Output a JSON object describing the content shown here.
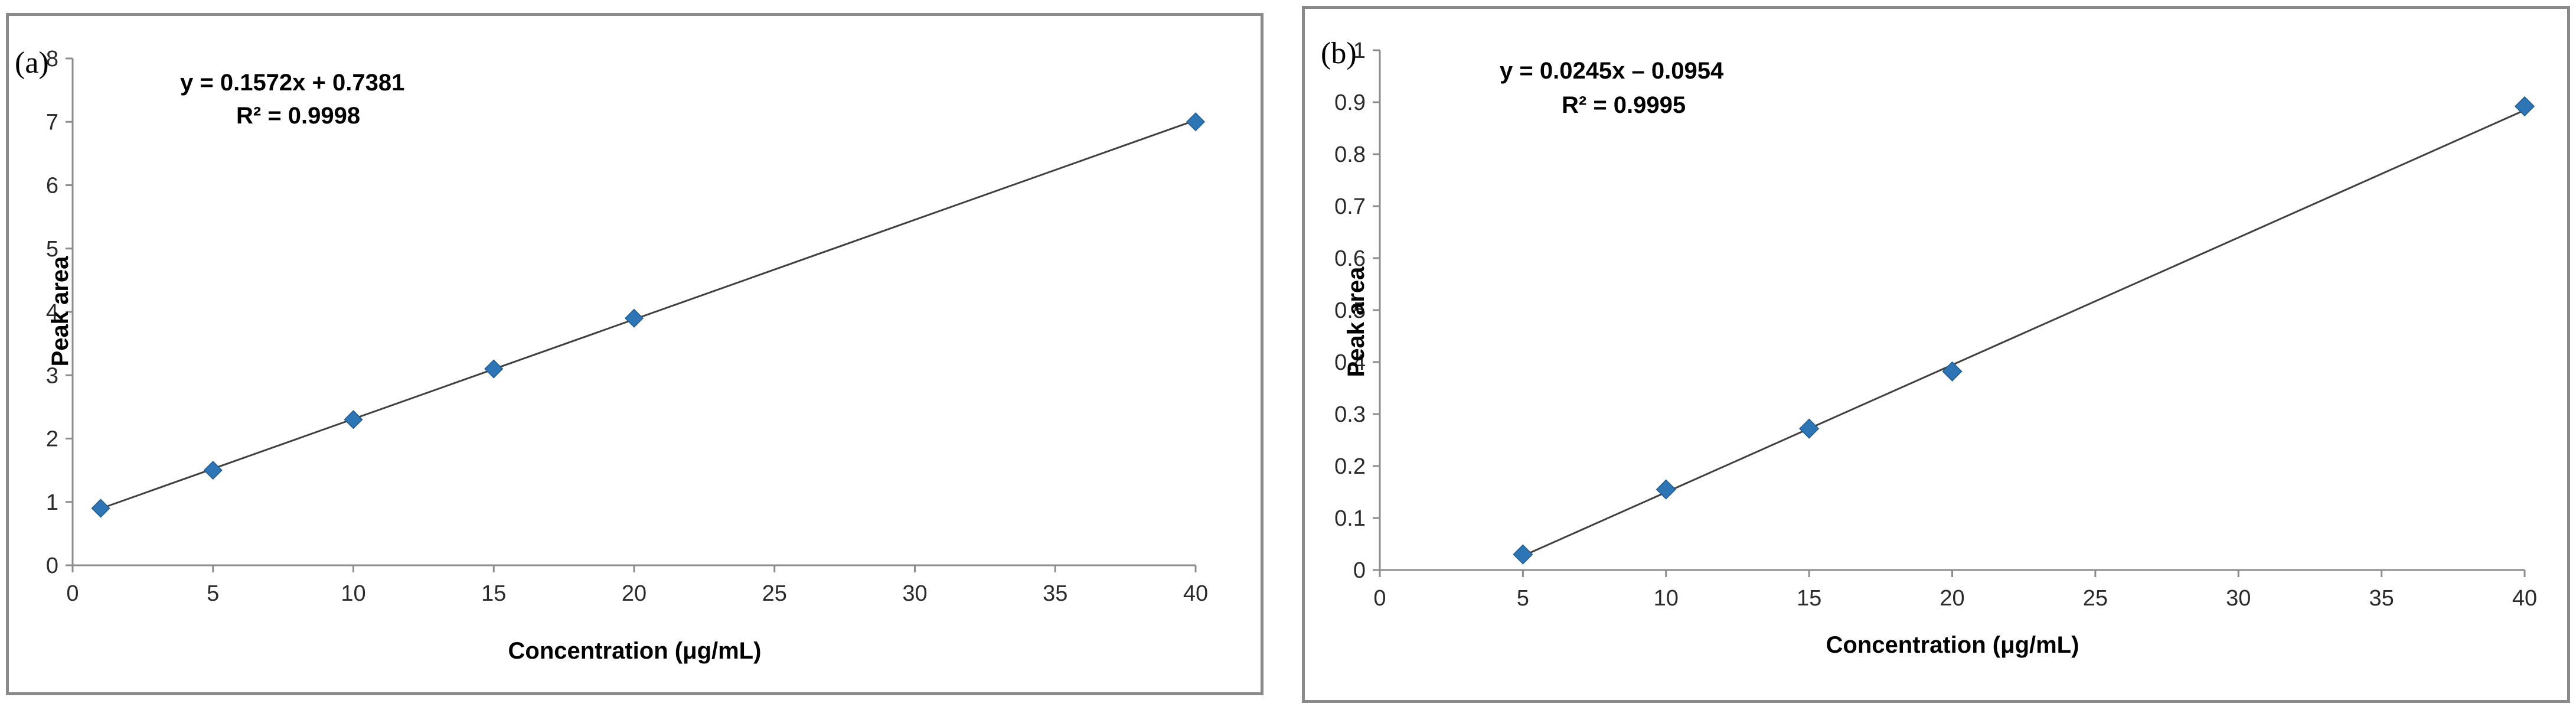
{
  "chart_data": [
    {
      "type": "scatter",
      "panel_label": "(a)",
      "xlabel": "Concentration  (μg/mL)",
      "ylabel": "Peak area",
      "xlim": [
        0,
        40
      ],
      "ylim": [
        0,
        8
      ],
      "x_ticks": [
        0,
        5,
        10,
        15,
        20,
        25,
        30,
        35,
        40
      ],
      "y_ticks": [
        0,
        1,
        2,
        3,
        4,
        5,
        6,
        7,
        8
      ],
      "series": [
        {
          "x": [
            1,
            5,
            10,
            15,
            20,
            40
          ],
          "y": [
            0.9,
            1.5,
            2.3,
            3.1,
            3.9,
            7.0
          ],
          "color": "#2e75b6",
          "marker": "diamond"
        }
      ],
      "trendline": {
        "slope": 0.1572,
        "intercept": 0.7381,
        "x_range": [
          1,
          40
        ],
        "color": "#404040"
      },
      "equation": "y = 0.1572x + 0.7381",
      "r_squared": "R² = 0.9998",
      "grid": false
    },
    {
      "type": "scatter",
      "panel_label": "(b)",
      "xlabel": "Concentration  (μg/mL)",
      "ylabel": "Peak area",
      "xlim": [
        0,
        40
      ],
      "ylim": [
        0,
        1
      ],
      "x_ticks": [
        0,
        5,
        10,
        15,
        20,
        25,
        30,
        35,
        40
      ],
      "y_ticks": [
        "0",
        "0.1",
        "0.2",
        "0.3",
        "0.4",
        "0.5",
        "0.6",
        "0.7",
        "0.8",
        "0.9",
        "1"
      ],
      "series": [
        {
          "x": [
            5,
            10,
            15,
            20,
            40
          ],
          "y": [
            0.03,
            0.155,
            0.272,
            0.382,
            0.892
          ],
          "color": "#2e75b6",
          "marker": "diamond"
        }
      ],
      "trendline": {
        "slope": 0.0245,
        "intercept": -0.0954,
        "x_range": [
          5,
          40
        ],
        "color": "#404040"
      },
      "equation": "y = 0.0245x – 0.0954",
      "r_squared": "R² = 0.9995",
      "grid": false
    }
  ]
}
